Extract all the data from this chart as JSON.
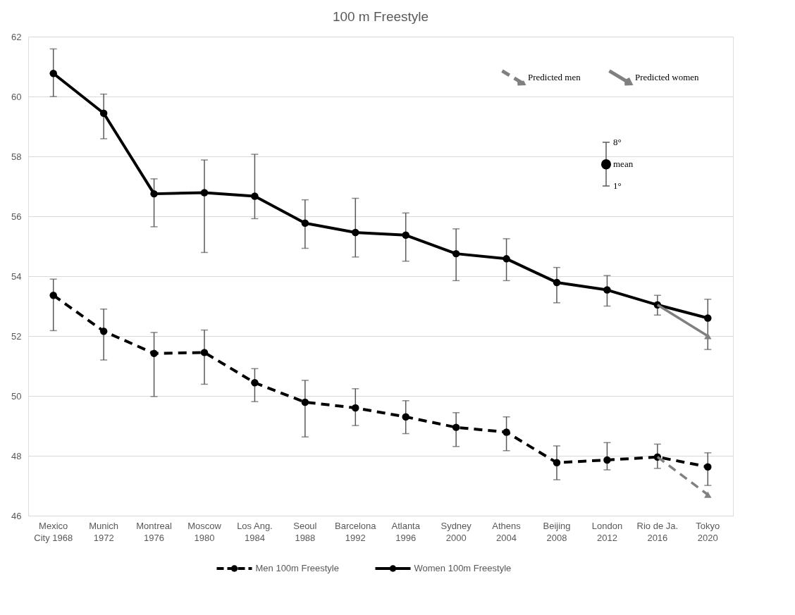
{
  "chart_data": {
    "type": "line",
    "title": "100 m Freestyle",
    "categories": [
      "Mexico\nCity 1968",
      "Munich\n1972",
      "Montreal\n1976",
      "Moscow\n1980",
      "Los Ang.\n1984",
      "Seoul\n1988",
      "Barcelona\n1992",
      "Atlanta\n1996",
      "Sydney\n2000",
      "Athens\n2004",
      "Beijing\n2008",
      "London\n2012",
      "Rio de Ja.\n2016",
      "Tokyo\n2020"
    ],
    "series": [
      {
        "name": "Predicted men",
        "color": "#808080",
        "line_style": "dashed",
        "marker": "triangle",
        "values": [
          null,
          null,
          null,
          null,
          null,
          null,
          null,
          null,
          null,
          null,
          null,
          null,
          47.96,
          46.7
        ]
      },
      {
        "name": "Predicted women",
        "color": "#808080",
        "line_style": "solid",
        "marker": "triangle",
        "values": [
          null,
          null,
          null,
          null,
          null,
          null,
          null,
          null,
          null,
          null,
          null,
          null,
          53.04,
          52.0
        ]
      },
      {
        "name": "Men 100m Freestyle",
        "color": "#000000",
        "line_style": "dashed",
        "marker": "circle",
        "values": [
          53.36,
          52.16,
          51.42,
          51.45,
          50.44,
          49.79,
          49.6,
          49.3,
          48.95,
          48.79,
          47.77,
          47.86,
          47.96,
          47.63
        ],
        "errors": [
          [
            52.18,
            53.9
          ],
          [
            51.2,
            52.9
          ],
          [
            49.98,
            52.12
          ],
          [
            50.39,
            52.2
          ],
          [
            49.81,
            50.91
          ],
          [
            48.63,
            50.52
          ],
          [
            49.01,
            50.24
          ],
          [
            48.74,
            49.84
          ],
          [
            48.31,
            49.44
          ],
          [
            48.17,
            49.3
          ],
          [
            47.2,
            48.33
          ],
          [
            47.53,
            48.44
          ],
          [
            47.58,
            48.39
          ],
          [
            47.01,
            48.1
          ]
        ]
      },
      {
        "name": "Women 100m Freestyle",
        "color": "#000000",
        "line_style": "solid",
        "marker": "circle",
        "values": [
          60.77,
          59.44,
          56.75,
          56.79,
          56.67,
          55.77,
          55.46,
          55.37,
          54.75,
          54.58,
          53.79,
          53.54,
          53.04,
          52.6
        ],
        "errors": [
          [
            60.0,
            61.59
          ],
          [
            58.59,
            60.08
          ],
          [
            55.65,
            57.25
          ],
          [
            54.79,
            57.88
          ],
          [
            55.92,
            58.07
          ],
          [
            54.93,
            56.55
          ],
          [
            54.64,
            56.6
          ],
          [
            54.5,
            56.11
          ],
          [
            53.85,
            55.58
          ],
          [
            53.85,
            55.25
          ],
          [
            53.11,
            54.29
          ],
          [
            53.0,
            54.02
          ],
          [
            52.7,
            53.36
          ],
          [
            51.55,
            53.23
          ]
        ]
      }
    ],
    "ylim": [
      46,
      62
    ],
    "yticks": [
      46,
      48,
      50,
      52,
      54,
      56,
      58,
      60,
      62
    ],
    "grid": "y",
    "legend": "bottom",
    "annotations": [
      "8°",
      "mean",
      "1°"
    ]
  }
}
